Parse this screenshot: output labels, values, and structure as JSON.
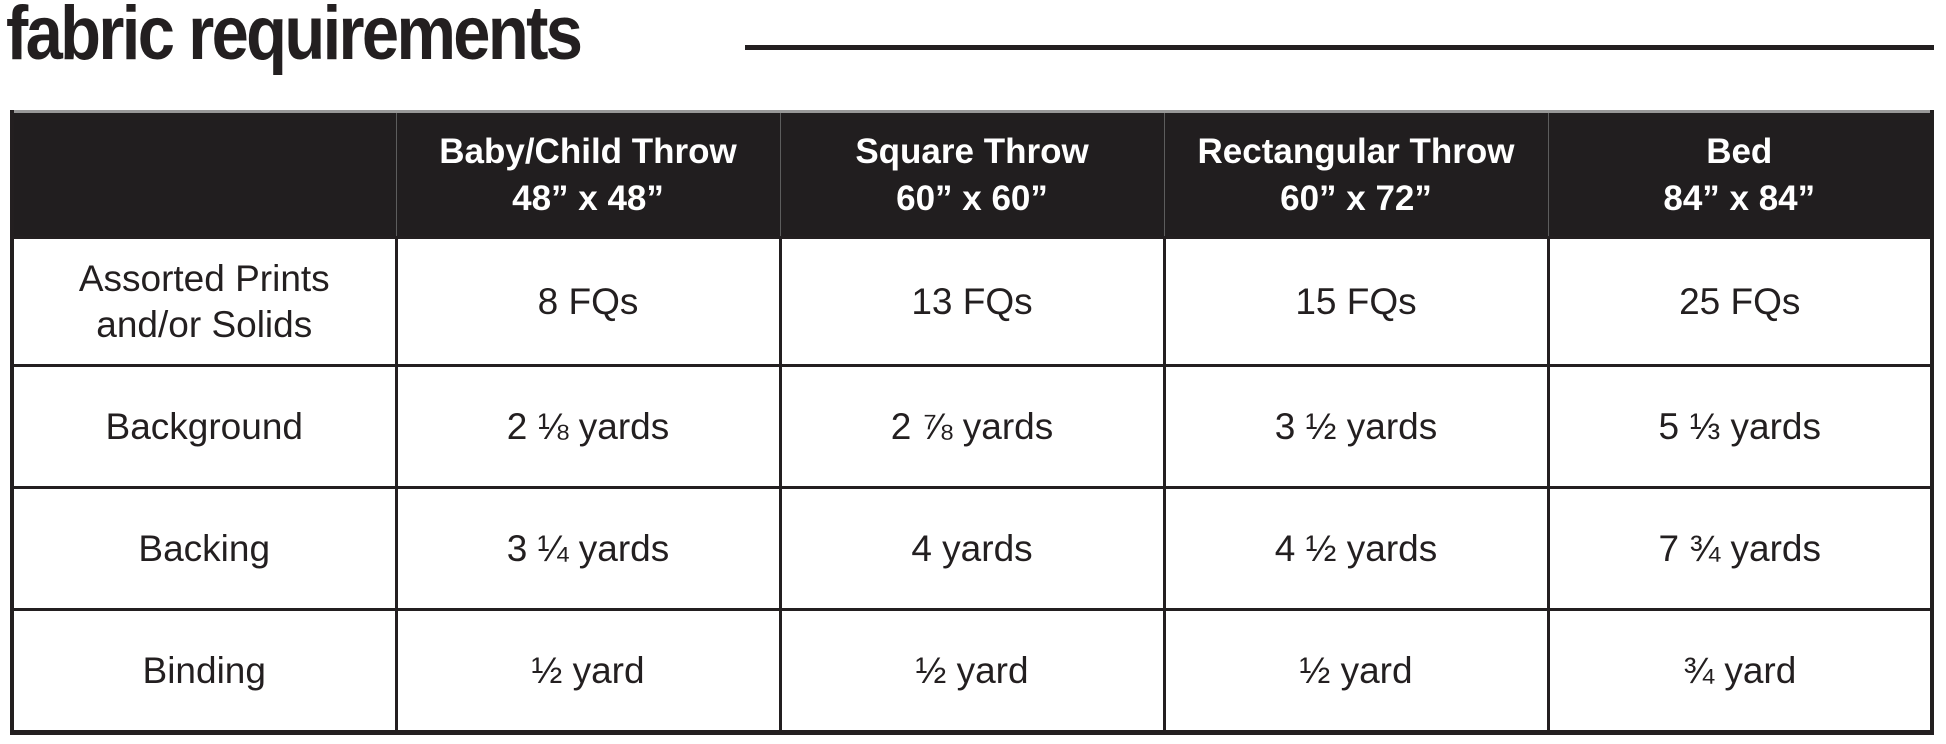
{
  "title": "fabric requirements",
  "colors": {
    "header_bg": "#211e1f",
    "header_text": "#ffffff",
    "body_text": "#231f20",
    "border": "#231f20"
  },
  "table": {
    "columns": [
      {
        "name": "Baby/Child Throw",
        "size": "48” x 48”"
      },
      {
        "name": "Square Throw",
        "size": "60” x 60”"
      },
      {
        "name": "Rectangular Throw",
        "size": "60” x 72”"
      },
      {
        "name": "Bed",
        "size": "84” x 84”"
      }
    ],
    "rows": [
      {
        "label": [
          "Assorted Prints",
          "and/or Solids"
        ],
        "values": [
          "8 FQs",
          "13 FQs",
          "15 FQs",
          "25 FQs"
        ]
      },
      {
        "label": [
          "Background"
        ],
        "values": [
          "2 ⅛ yards",
          "2 ⅞ yards",
          "3 ½ yards",
          "5 ⅓ yards"
        ]
      },
      {
        "label": [
          "Backing"
        ],
        "values": [
          "3 ¼ yards",
          "4 yards",
          "4 ½ yards",
          "7 ¾ yards"
        ]
      },
      {
        "label": [
          "Binding"
        ],
        "values": [
          "½ yard",
          "½ yard",
          "½ yard",
          "¾ yard"
        ]
      }
    ]
  }
}
